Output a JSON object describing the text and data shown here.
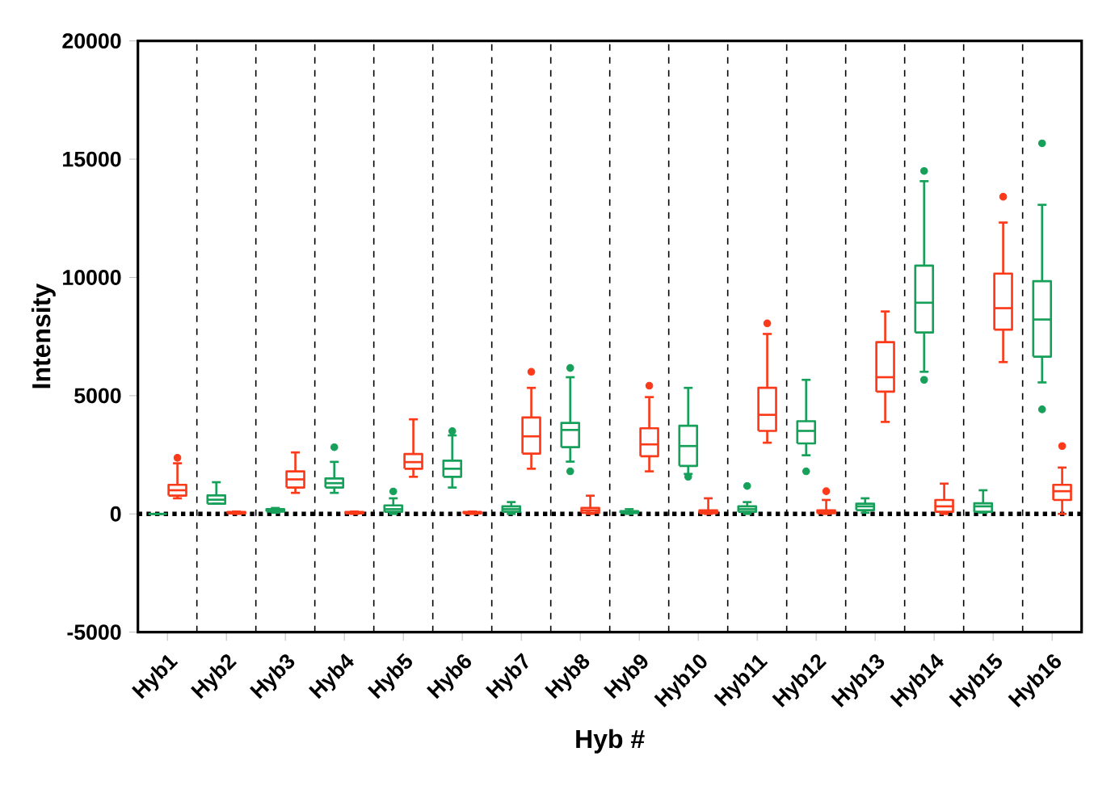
{
  "chart_data": {
    "type": "box",
    "xlabel": "Hyb #",
    "ylabel": "Intensity",
    "categories": [
      "Hyb1",
      "Hyb2",
      "Hyb3",
      "Hyb4",
      "Hyb5",
      "Hyb6",
      "Hyb7",
      "Hyb8",
      "Hyb9",
      "Hyb10",
      "Hyb11",
      "Hyb12",
      "Hyb13",
      "Hyb14",
      "Hyb15",
      "Hyb16"
    ],
    "ylim": [
      -5000,
      20000
    ],
    "yticks": [
      -5000,
      0,
      5000,
      10000,
      15000,
      20000
    ],
    "grid": "x",
    "marker": "circle",
    "ref_lines": [
      {
        "axis": "y",
        "value": 0,
        "line_style": "dotted",
        "color": "#000000"
      }
    ],
    "series": [
      {
        "color": "#16a05a",
        "boxes": [
          {
            "low": 0,
            "q1": 0,
            "median": 0,
            "q3": 0,
            "high": 0
          },
          {
            "low": 430,
            "q1": 430,
            "median": 600,
            "q3": 780,
            "high": 1340
          },
          {
            "low": 50,
            "q1": 100,
            "median": 150,
            "q3": 200,
            "high": 250
          },
          {
            "low": 890,
            "q1": 1115,
            "median": 1300,
            "q3": 1500,
            "high": 2200,
            "outliers": [
              2820
            ]
          },
          {
            "low": 0,
            "q1": 90,
            "median": 200,
            "q3": 360,
            "high": 660,
            "outliers": [
              950
            ]
          },
          {
            "low": 1115,
            "q1": 1570,
            "median": 1910,
            "q3": 2250,
            "high": 3320,
            "outliers": [
              3500
            ]
          },
          {
            "low": 0,
            "q1": 90,
            "median": 200,
            "q3": 320,
            "high": 500
          },
          {
            "low": 2210,
            "q1": 2820,
            "median": 3550,
            "q3": 3850,
            "high": 5780,
            "outliers": [
              6170,
              1800
            ]
          },
          {
            "low": 0,
            "q1": 40,
            "median": 80,
            "q3": 120,
            "high": 200
          },
          {
            "low": 1690,
            "q1": 2030,
            "median": 2870,
            "q3": 3730,
            "high": 5330,
            "outliers": [
              1570
            ]
          },
          {
            "low": 0,
            "q1": 90,
            "median": 200,
            "q3": 320,
            "high": 500,
            "outliers": [
              1180
            ]
          },
          {
            "low": 2480,
            "q1": 2980,
            "median": 3510,
            "q3": 3920,
            "high": 5670,
            "outliers": [
              1800
            ]
          },
          {
            "low": 50,
            "q1": 160,
            "median": 320,
            "q3": 430,
            "high": 660
          },
          {
            "low": 6010,
            "q1": 7670,
            "median": 8930,
            "q3": 10500,
            "high": 14070,
            "outliers": [
              14500,
              5670
            ]
          },
          {
            "low": 50,
            "q1": 90,
            "median": 320,
            "q3": 450,
            "high": 1000
          },
          {
            "low": 5560,
            "q1": 6650,
            "median": 8220,
            "q3": 9840,
            "high": 13070,
            "outliers": [
              15670,
              4420
            ]
          }
        ]
      },
      {
        "color": "#fb3a1a",
        "boxes": [
          {
            "low": 660,
            "q1": 774,
            "median": 1000,
            "q3": 1230,
            "high": 2140,
            "outliers": [
              2370
            ]
          },
          {
            "low": 0,
            "q1": 20,
            "median": 50,
            "q3": 80,
            "high": 100
          },
          {
            "low": 890,
            "q1": 1115,
            "median": 1460,
            "q3": 1800,
            "high": 2600
          },
          {
            "low": 0,
            "q1": 20,
            "median": 50,
            "q3": 80,
            "high": 100
          },
          {
            "low": 1570,
            "q1": 1910,
            "median": 2190,
            "q3": 2530,
            "high": 4000
          },
          {
            "low": 0,
            "q1": 20,
            "median": 50,
            "q3": 80,
            "high": 100
          },
          {
            "low": 1910,
            "q1": 2550,
            "median": 3280,
            "q3": 4080,
            "high": 5330,
            "outliers": [
              6010
            ]
          },
          {
            "low": 0,
            "q1": 50,
            "median": 150,
            "q3": 250,
            "high": 770
          },
          {
            "low": 1800,
            "q1": 2440,
            "median": 2940,
            "q3": 3620,
            "high": 4940,
            "outliers": [
              5420
            ]
          },
          {
            "low": 0,
            "q1": 30,
            "median": 100,
            "q3": 150,
            "high": 660
          },
          {
            "low": 3010,
            "q1": 3510,
            "median": 4190,
            "q3": 5330,
            "high": 7610,
            "outliers": [
              8060
            ]
          },
          {
            "low": 0,
            "q1": 30,
            "median": 80,
            "q3": 150,
            "high": 590,
            "outliers": [
              960
            ]
          },
          {
            "low": 3890,
            "q1": 5170,
            "median": 5780,
            "q3": 7260,
            "high": 8560
          },
          {
            "low": 0,
            "q1": 90,
            "median": 320,
            "q3": 590,
            "high": 1280
          },
          {
            "low": 6420,
            "q1": 7790,
            "median": 8700,
            "q3": 10160,
            "high": 12320,
            "outliers": [
              13410
            ]
          },
          {
            "low": 0,
            "q1": 590,
            "median": 960,
            "q3": 1230,
            "high": 1960,
            "outliers": [
              2870
            ]
          }
        ]
      }
    ]
  }
}
